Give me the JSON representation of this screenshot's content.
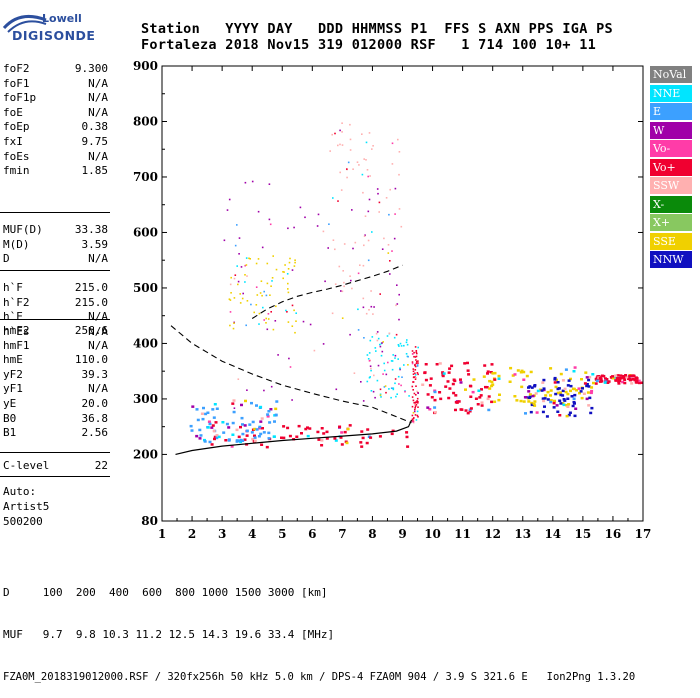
{
  "logo": {
    "top": "Lowell",
    "bottom": "DIGISONDE"
  },
  "header": {
    "row1": "Station   YYYY DAY   DDD HHMMSS P1  FFS S AXN PPS IGA PS",
    "row2": "Fortaleza 2018 Nov15 319 012000 RSF   1 714 100 10+ 11"
  },
  "params": [
    {
      "group": 1,
      "name": "foF2",
      "value": "9.300"
    },
    {
      "group": 1,
      "name": "foF1",
      "value": "N/A"
    },
    {
      "group": 1,
      "name": "foF1p",
      "value": "N/A"
    },
    {
      "group": 1,
      "name": "foE",
      "value": "N/A"
    },
    {
      "group": 1,
      "name": "foEp",
      "value": "0.38"
    },
    {
      "group": 1,
      "name": "fxI",
      "value": "9.75"
    },
    {
      "group": 1,
      "name": "foEs",
      "value": "N/A"
    },
    {
      "group": 1,
      "name": "fmin",
      "value": "1.85"
    },
    {
      "group": 2,
      "name": "MUF(D)",
      "value": "33.38"
    },
    {
      "group": 2,
      "name": "M(D)",
      "value": "3.59"
    },
    {
      "group": 2,
      "name": "D",
      "value": "N/A"
    },
    {
      "group": 3,
      "name": "h`F",
      "value": "215.0"
    },
    {
      "group": 3,
      "name": "h`F2",
      "value": "215.0"
    },
    {
      "group": 3,
      "name": "h`E",
      "value": "N/A"
    },
    {
      "group": 3,
      "name": "h`Es",
      "value": "N/A"
    },
    {
      "group": 4,
      "name": "hmF2",
      "value": "256.6"
    },
    {
      "group": 4,
      "name": "hmF1",
      "value": "N/A"
    },
    {
      "group": 4,
      "name": "hmE",
      "value": "110.0"
    },
    {
      "group": 4,
      "name": "yF2",
      "value": "39.3"
    },
    {
      "group": 4,
      "name": "yF1",
      "value": "N/A"
    },
    {
      "group": 4,
      "name": "yE",
      "value": "20.0"
    },
    {
      "group": 4,
      "name": "B0",
      "value": "36.8"
    },
    {
      "group": 4,
      "name": "B1",
      "value": "2.56"
    },
    {
      "group": 5,
      "name": "C-level",
      "value": "22"
    }
  ],
  "auto": [
    "Auto:",
    "Artist5",
    "500200"
  ],
  "legend": [
    {
      "label": "NoVal",
      "bg": "#808080",
      "fg": "#ffffff"
    },
    {
      "label": "NNE",
      "bg": "#00e5ff",
      "fg": "#ffffff"
    },
    {
      "label": "E",
      "bg": "#3ca0ff",
      "fg": "#ffffff"
    },
    {
      "label": "W",
      "bg": "#a000a8",
      "fg": "#ffffff"
    },
    {
      "label": "Vo-",
      "bg": "#ff3ca8",
      "fg": "#ffffff"
    },
    {
      "label": "Vo+",
      "bg": "#f00030",
      "fg": "#ffffff"
    },
    {
      "label": "SSW",
      "bg": "#ffb0b0",
      "fg": "#ffffff"
    },
    {
      "label": "X-",
      "bg": "#0a8a0a",
      "fg": "#ffffff"
    },
    {
      "label": "X+",
      "bg": "#88c860",
      "fg": "#ffffff"
    },
    {
      "label": "SSE",
      "bg": "#f0d000",
      "fg": "#ffffff"
    },
    {
      "label": "NNW",
      "bg": "#1010c0",
      "fg": "#ffffff"
    }
  ],
  "footer": {
    "line1": "D     100  200  400  600  800 1000 1500 3000 [km]",
    "line2": "MUF   9.7  9.8 10.3 11.2 12.5 14.3 19.6 33.4 [MHz]",
    "line3": "FZA0M_2018319012000.RSF / 320fx256h 50 kHz 5.0 km / DPS-4 FZA0M 904 / 3.9 S 321.6 E   Ion2Png 1.3.20"
  },
  "chart_data": {
    "type": "scatter",
    "xlim": [
      1,
      17
    ],
    "ylim": [
      80,
      900
    ],
    "x_ticks": [
      1,
      2,
      3,
      4,
      5,
      6,
      7,
      8,
      9,
      10,
      11,
      12,
      13,
      14,
      15,
      16,
      17
    ],
    "y_ticks": [
      80,
      200,
      300,
      400,
      500,
      600,
      700,
      800,
      900
    ],
    "grid": false,
    "legend_placement": "right",
    "traces": {
      "virtual_height_solid": [
        [
          1.45,
          200
        ],
        [
          2,
          207
        ],
        [
          3,
          215
        ],
        [
          4,
          220
        ],
        [
          5,
          225
        ],
        [
          6,
          229
        ],
        [
          7,
          233
        ],
        [
          8,
          237
        ],
        [
          8.8,
          242
        ],
        [
          9.2,
          250
        ],
        [
          9.3,
          262
        ]
      ],
      "profile_dashed": [
        [
          1.3,
          432
        ],
        [
          2,
          400
        ],
        [
          3,
          368
        ],
        [
          4,
          345
        ],
        [
          5,
          325
        ],
        [
          6,
          310
        ],
        [
          7,
          296
        ],
        [
          8,
          285
        ],
        [
          8.8,
          268
        ],
        [
          9.3,
          257
        ]
      ],
      "f2_extension_dashed": [
        [
          4,
          445
        ],
        [
          4.5,
          462
        ],
        [
          5,
          475
        ],
        [
          5.5,
          485
        ],
        [
          6,
          492
        ],
        [
          6.5,
          498
        ],
        [
          7,
          505
        ],
        [
          7.5,
          513
        ],
        [
          8,
          521
        ],
        [
          8.5,
          530
        ],
        [
          9,
          541
        ]
      ]
    },
    "echo_regions": [
      {
        "x": [
          1.9,
          9.3
        ],
        "y": [
          215,
          255
        ],
        "dir": "Vo+"
      },
      {
        "x": [
          1.9,
          4.8
        ],
        "y": [
          225,
          300
        ],
        "dir": "E"
      },
      {
        "x": [
          9.3,
          9.5
        ],
        "y": [
          255,
          400
        ],
        "dir": "Vo+"
      },
      {
        "x": [
          9.6,
          12.0
        ],
        "y": [
          275,
          370
        ],
        "dir": "Vo+"
      },
      {
        "x": [
          11.5,
          15.3
        ],
        "y": [
          290,
          360
        ],
        "dir": "SSE"
      },
      {
        "x": [
          13.0,
          15.3
        ],
        "y": [
          270,
          340
        ],
        "dir": "NNW"
      },
      {
        "x": [
          15.3,
          16.9
        ],
        "y": [
          330,
          345
        ],
        "dir": "Vo+"
      },
      {
        "x": [
          3.0,
          9.0
        ],
        "y": [
          280,
          700
        ],
        "dir": "W"
      },
      {
        "x": [
          3.2,
          5.5
        ],
        "y": [
          420,
          560
        ],
        "dir": "SSE"
      },
      {
        "x": [
          6.5,
          9.0
        ],
        "y": [
          450,
          800
        ],
        "dir": "SSW"
      },
      {
        "x": [
          7.8,
          9.2
        ],
        "y": [
          300,
          420
        ],
        "dir": "NNE"
      }
    ]
  }
}
